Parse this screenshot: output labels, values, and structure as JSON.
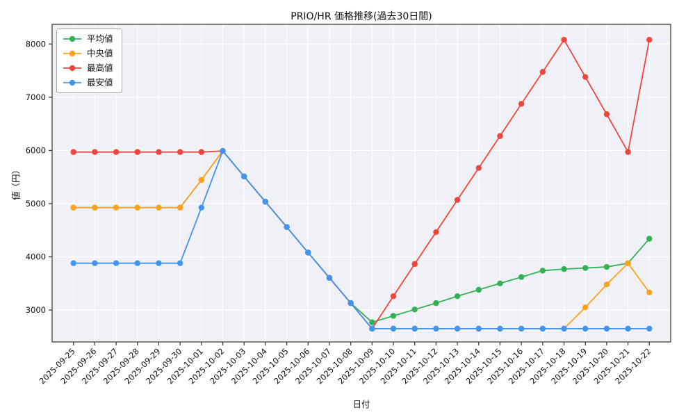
{
  "figure": {
    "title": "PRIO/HR 価格推移(過去30日間)",
    "xlabel": "日付",
    "ylabel": "値（円）"
  },
  "chart_data": {
    "type": "line",
    "title": "PRIO/HR 価格推移(過去30日間)",
    "xlabel": "日付",
    "ylabel": "値（円）",
    "marker": "o",
    "grid": true,
    "legend_position": "upper left",
    "plot_bg": "#f0f1f6",
    "grid_color": "#ffffff",
    "axis_color": "#333333",
    "ylim": [
      2400,
      8370
    ],
    "yticks": [
      3000,
      4000,
      5000,
      6000,
      7000,
      8000
    ],
    "x": [
      "2025-09-25",
      "2025-09-26",
      "2025-09-27",
      "2025-09-28",
      "2025-09-29",
      "2025-09-30",
      "2025-10-01",
      "2025-10-02",
      "2025-10-03",
      "2025-10-04",
      "2025-10-05",
      "2025-10-06",
      "2025-10-07",
      "2025-10-08",
      "2025-10-09",
      "2025-10-10",
      "2025-10-11",
      "2025-10-12",
      "2025-10-13",
      "2025-10-14",
      "2025-10-15",
      "2025-10-16",
      "2025-10-17",
      "2025-10-18",
      "2025-10-19",
      "2025-10-20",
      "2025-10-21",
      "2025-10-22"
    ],
    "series": [
      {
        "key": "mean",
        "name": "平均値",
        "color": "#35b155",
        "values": [
          4925,
          4925,
          4925,
          4925,
          4925,
          4925,
          5445,
          5990,
          5510,
          5035,
          4560,
          4080,
          3605,
          3130,
          2770,
          2890,
          3010,
          3130,
          3260,
          3380,
          3500,
          3620,
          3740,
          3770,
          3790,
          3810,
          3880,
          4340
        ]
      },
      {
        "key": "median",
        "name": "中央値",
        "color": "#ffa31e",
        "values": [
          4925,
          4925,
          4925,
          4925,
          4925,
          4925,
          5445,
          5990,
          5510,
          5035,
          4560,
          4080,
          3605,
          3130,
          2650,
          2650,
          2650,
          2650,
          2650,
          2650,
          2650,
          2650,
          2650,
          2650,
          3050,
          3480,
          3880,
          3330
        ]
      },
      {
        "key": "max",
        "name": "最高値",
        "color": "#f0453f",
        "values": [
          5970,
          5970,
          5970,
          5970,
          5970,
          5970,
          5970,
          5990,
          5510,
          5035,
          4560,
          4080,
          3605,
          3130,
          2650,
          3260,
          3865,
          4465,
          5070,
          5670,
          6270,
          6875,
          7475,
          8080,
          7380,
          6680,
          5970,
          8080
        ]
      },
      {
        "key": "min",
        "name": "最安値",
        "color": "#4194f0",
        "values": [
          3880,
          3880,
          3880,
          3880,
          3880,
          3880,
          4925,
          5990,
          5510,
          5035,
          4560,
          4080,
          3605,
          3130,
          2650,
          2650,
          2650,
          2650,
          2650,
          2650,
          2650,
          2650,
          2650,
          2650,
          2650,
          2650,
          2650,
          2650
        ]
      }
    ]
  }
}
